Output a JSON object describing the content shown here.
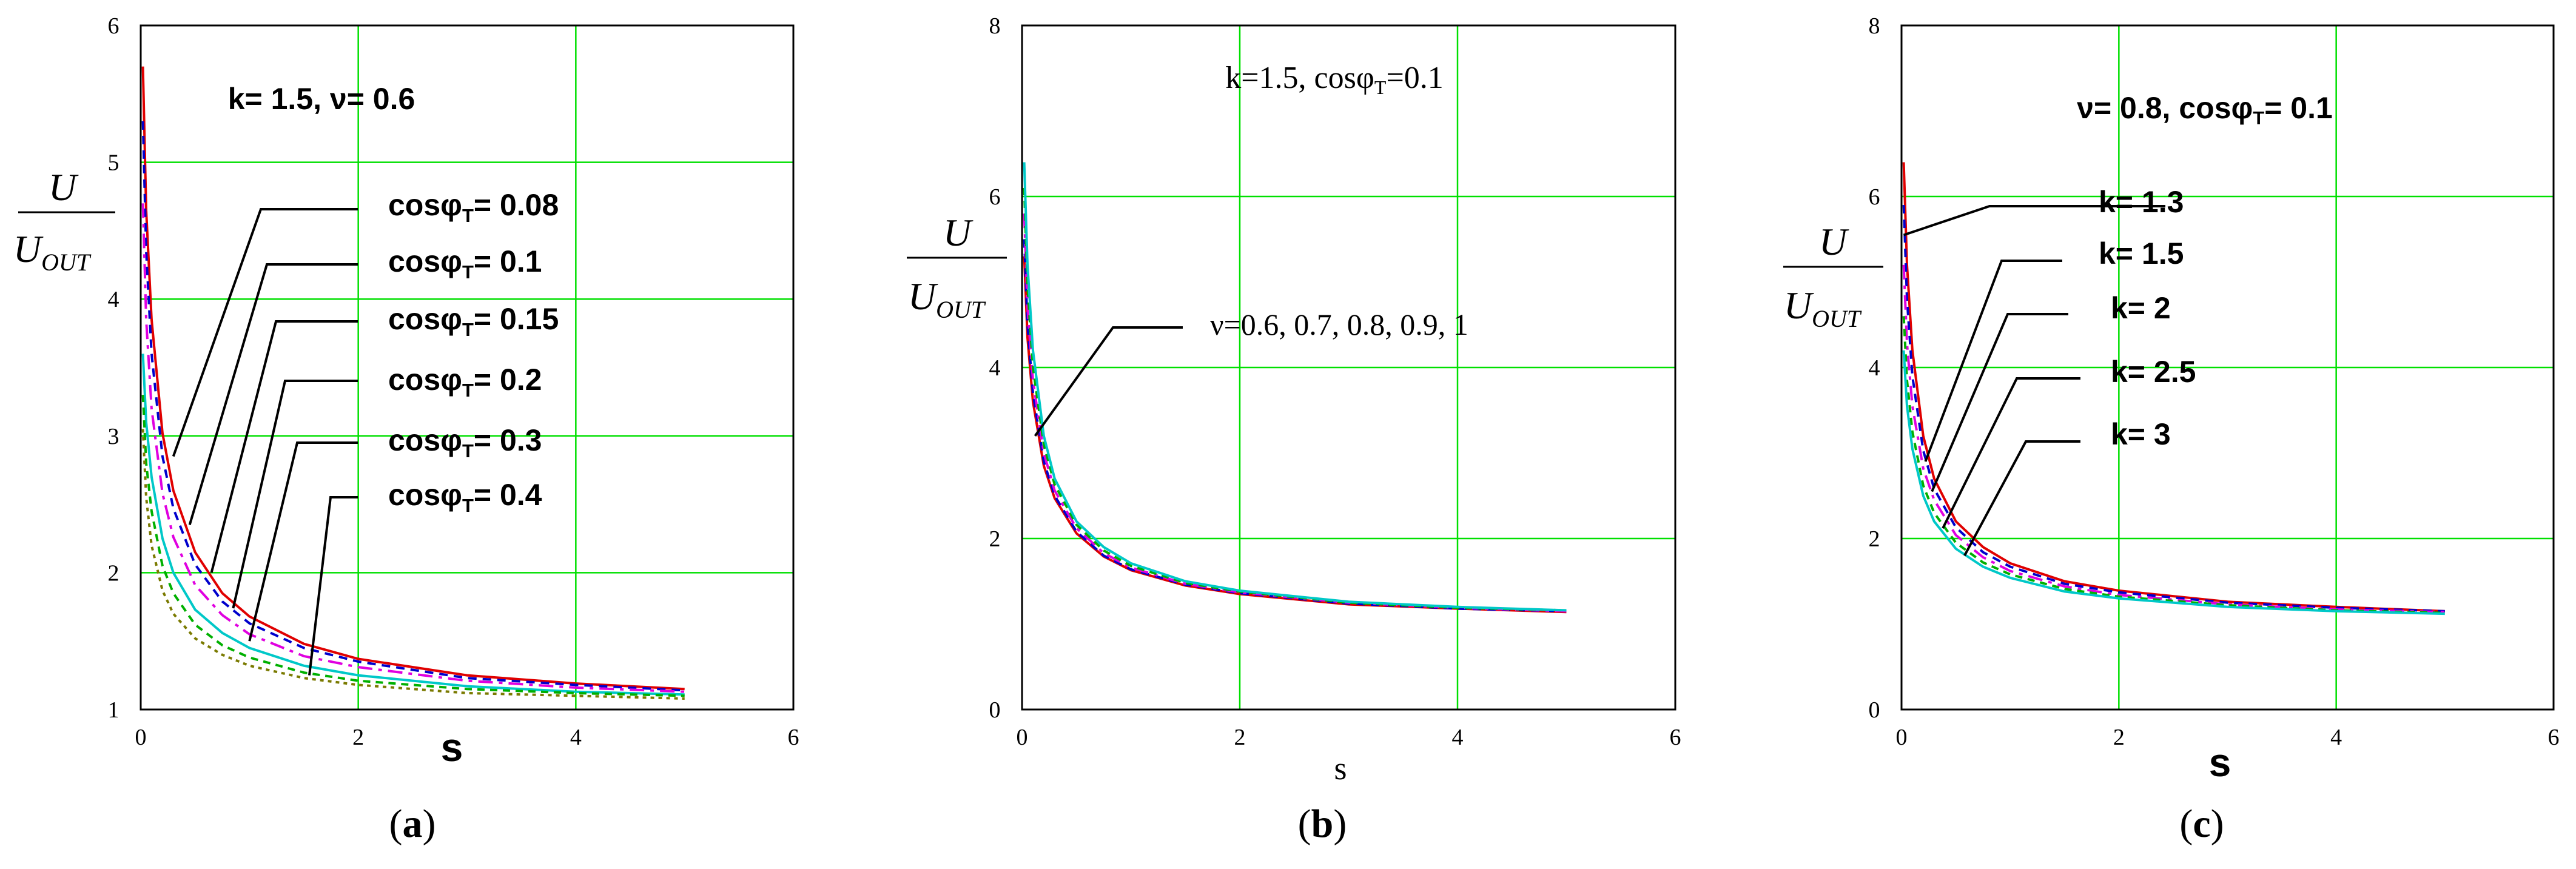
{
  "chart_data": [
    {
      "id": "a",
      "type": "line",
      "panel_label": "(a)",
      "xlabel": "s",
      "ylabel_num": "U",
      "ylabel_den": "U",
      "ylabel_den_sub": "OUT",
      "xlim": [
        0,
        6
      ],
      "ylim": [
        1,
        6
      ],
      "xticks": [
        0,
        2,
        4,
        6
      ],
      "yticks": [
        1,
        2,
        3,
        4,
        5,
        6
      ],
      "grid": true,
      "annotation": "k= 1.5, ν= 0.6",
      "label_style": "bold-sans",
      "series": [
        {
          "name": "cosφT= 0.08",
          "label_main": "cosφ",
          "label_sub": "T",
          "label_rest": "= 0.08",
          "color": "#e00000",
          "dash": "",
          "x": [
            0.02,
            0.05,
            0.1,
            0.2,
            0.3,
            0.5,
            0.75,
            1,
            1.5,
            2,
            3,
            4,
            5
          ],
          "y": [
            5.7,
            4.65,
            3.85,
            3.02,
            2.6,
            2.15,
            1.85,
            1.68,
            1.48,
            1.37,
            1.25,
            1.19,
            1.15
          ]
        },
        {
          "name": "cosφT= 0.1",
          "label_main": "cosφ",
          "label_sub": "T",
          "label_rest": "= 0.1",
          "color": "#0000cc",
          "dash": "14 10",
          "x": [
            0.02,
            0.05,
            0.1,
            0.2,
            0.3,
            0.5,
            0.75,
            1,
            1.5,
            2,
            3,
            4,
            5
          ],
          "y": [
            5.3,
            4.35,
            3.6,
            2.85,
            2.47,
            2.06,
            1.79,
            1.63,
            1.45,
            1.35,
            1.23,
            1.18,
            1.14
          ]
        },
        {
          "name": "cosφT= 0.15",
          "label_main": "cosφ",
          "label_sub": "T",
          "label_rest": "= 0.15",
          "color": "#e000e0",
          "dash": "24 10 6 10",
          "x": [
            0.02,
            0.05,
            0.1,
            0.2,
            0.3,
            0.5,
            0.75,
            1,
            1.5,
            2,
            3,
            4,
            5
          ],
          "y": [
            4.7,
            3.85,
            3.2,
            2.58,
            2.26,
            1.91,
            1.69,
            1.55,
            1.39,
            1.31,
            1.21,
            1.16,
            1.13
          ]
        },
        {
          "name": "cosφT= 0.2",
          "label_main": "cosφ",
          "label_sub": "T",
          "label_rest": "= 0.2",
          "color": "#00c8c8",
          "dash": "",
          "x": [
            0.02,
            0.05,
            0.1,
            0.2,
            0.3,
            0.5,
            0.75,
            1,
            1.5,
            2,
            3,
            4,
            5
          ],
          "y": [
            3.6,
            3.1,
            2.7,
            2.25,
            2.0,
            1.73,
            1.56,
            1.45,
            1.32,
            1.25,
            1.17,
            1.13,
            1.11
          ]
        },
        {
          "name": "cosφT= 0.3",
          "label_main": "cosφ",
          "label_sub": "T",
          "label_rest": "= 0.3",
          "color": "#00b000",
          "dash": "12 9",
          "x": [
            0.02,
            0.05,
            0.1,
            0.2,
            0.3,
            0.5,
            0.75,
            1,
            1.5,
            2,
            3,
            4,
            5
          ],
          "y": [
            3.3,
            2.8,
            2.45,
            2.05,
            1.85,
            1.62,
            1.47,
            1.38,
            1.27,
            1.21,
            1.15,
            1.12,
            1.1
          ]
        },
        {
          "name": "cosφT= 0.4",
          "label_main": "cosφ",
          "label_sub": "T",
          "label_rest": "= 0.4",
          "color": "#7a7a00",
          "dash": "6 7",
          "x": [
            0.02,
            0.05,
            0.1,
            0.2,
            0.3,
            0.5,
            0.75,
            1,
            1.5,
            2,
            3,
            4,
            5
          ],
          "y": [
            3.05,
            2.55,
            2.2,
            1.87,
            1.7,
            1.52,
            1.4,
            1.32,
            1.23,
            1.18,
            1.12,
            1.1,
            1.08
          ]
        }
      ]
    },
    {
      "id": "b",
      "type": "line",
      "panel_label": "(b)",
      "xlabel": "s",
      "ylabel_num": "U",
      "ylabel_den": "U",
      "ylabel_den_sub": "OUT",
      "xlim": [
        0,
        6
      ],
      "ylim": [
        0,
        8
      ],
      "xticks": [
        0,
        2,
        4,
        6
      ],
      "yticks": [
        0,
        2,
        4,
        6,
        8
      ],
      "grid": true,
      "annotation": "k=1.5, cosφT=0.1",
      "group_label": "ν=0.6, 0.7, 0.8, 0.9, 1",
      "label_style": "serif",
      "series": [
        {
          "name": "ν=0.6",
          "color": "#e00000",
          "dash": "",
          "x": [
            0.02,
            0.05,
            0.1,
            0.2,
            0.3,
            0.5,
            0.75,
            1,
            1.5,
            2,
            3,
            4,
            5
          ],
          "y": [
            5.3,
            4.35,
            3.6,
            2.85,
            2.47,
            2.06,
            1.79,
            1.63,
            1.45,
            1.35,
            1.23,
            1.18,
            1.14
          ]
        },
        {
          "name": "ν=0.7",
          "color": "#0000cc",
          "dash": "14 10",
          "x": [
            0.02,
            0.05,
            0.1,
            0.2,
            0.3,
            0.5,
            0.75,
            1,
            1.5,
            2,
            3,
            4,
            5
          ],
          "y": [
            5.5,
            4.5,
            3.7,
            2.9,
            2.5,
            2.08,
            1.8,
            1.64,
            1.46,
            1.36,
            1.24,
            1.18,
            1.15
          ]
        },
        {
          "name": "ν=0.8",
          "color": "#e000e0",
          "dash": "24 10 6 10",
          "x": [
            0.02,
            0.05,
            0.1,
            0.2,
            0.3,
            0.5,
            0.75,
            1,
            1.5,
            2,
            3,
            4,
            5
          ],
          "y": [
            5.8,
            4.7,
            3.85,
            3.0,
            2.56,
            2.12,
            1.83,
            1.66,
            1.47,
            1.37,
            1.25,
            1.19,
            1.15
          ]
        },
        {
          "name": "ν=0.9",
          "color": "#00b000",
          "dash": "12 9",
          "x": [
            0.02,
            0.05,
            0.1,
            0.2,
            0.3,
            0.5,
            0.75,
            1,
            1.5,
            2,
            3,
            4,
            5
          ],
          "y": [
            6.1,
            4.95,
            4.0,
            3.1,
            2.63,
            2.16,
            1.86,
            1.68,
            1.48,
            1.38,
            1.25,
            1.19,
            1.16
          ]
        },
        {
          "name": "ν=1",
          "color": "#00c8c8",
          "dash": "",
          "x": [
            0.02,
            0.05,
            0.1,
            0.2,
            0.3,
            0.5,
            0.75,
            1,
            1.5,
            2,
            3,
            4,
            5
          ],
          "y": [
            6.4,
            5.2,
            4.2,
            3.2,
            2.7,
            2.2,
            1.9,
            1.71,
            1.5,
            1.39,
            1.26,
            1.2,
            1.16
          ]
        }
      ]
    },
    {
      "id": "c",
      "type": "line",
      "panel_label": "(c)",
      "xlabel": "s",
      "ylabel_num": "U",
      "ylabel_den": "U",
      "ylabel_den_sub": "OUT",
      "xlim": [
        0,
        6
      ],
      "ylim": [
        0,
        8
      ],
      "xticks": [
        0,
        2,
        4,
        6
      ],
      "yticks": [
        0,
        2,
        4,
        6,
        8
      ],
      "grid": true,
      "annotation": "ν= 0.8, cosφT= 0.1",
      "label_style": "bold-sans",
      "series": [
        {
          "name": "k= 1.3",
          "color": "#e00000",
          "dash": "",
          "x": [
            0.02,
            0.05,
            0.1,
            0.2,
            0.3,
            0.5,
            0.75,
            1,
            1.5,
            2,
            3,
            4,
            5
          ],
          "y": [
            6.4,
            5.2,
            4.2,
            3.2,
            2.7,
            2.2,
            1.9,
            1.71,
            1.5,
            1.39,
            1.26,
            1.2,
            1.15
          ]
        },
        {
          "name": "k= 1.5",
          "color": "#0000cc",
          "dash": "14 10",
          "x": [
            0.02,
            0.05,
            0.1,
            0.2,
            0.3,
            0.5,
            0.75,
            1,
            1.5,
            2,
            3,
            4,
            5
          ],
          "y": [
            5.9,
            4.8,
            3.9,
            3.03,
            2.58,
            2.13,
            1.84,
            1.67,
            1.47,
            1.37,
            1.25,
            1.19,
            1.15
          ]
        },
        {
          "name": "k= 2",
          "color": "#e000e0",
          "dash": "24 10 6 10",
          "x": [
            0.02,
            0.05,
            0.1,
            0.2,
            0.3,
            0.5,
            0.75,
            1,
            1.5,
            2,
            3,
            4,
            5
          ],
          "y": [
            5.2,
            4.28,
            3.55,
            2.82,
            2.45,
            2.04,
            1.78,
            1.62,
            1.44,
            1.34,
            1.23,
            1.17,
            1.14
          ]
        },
        {
          "name": "k= 2.5",
          "color": "#00b000",
          "dash": "12 9",
          "x": [
            0.02,
            0.05,
            0.1,
            0.2,
            0.3,
            0.5,
            0.75,
            1,
            1.5,
            2,
            3,
            4,
            5
          ],
          "y": [
            4.6,
            3.85,
            3.25,
            2.62,
            2.3,
            1.95,
            1.72,
            1.58,
            1.41,
            1.32,
            1.22,
            1.16,
            1.13
          ]
        },
        {
          "name": "k= 3",
          "color": "#00c8c8",
          "dash": "",
          "x": [
            0.02,
            0.05,
            0.1,
            0.2,
            0.3,
            0.5,
            0.75,
            1,
            1.5,
            2,
            3,
            4,
            5
          ],
          "y": [
            4.2,
            3.55,
            3.05,
            2.5,
            2.2,
            1.88,
            1.67,
            1.54,
            1.38,
            1.3,
            1.2,
            1.15,
            1.12
          ]
        }
      ]
    }
  ]
}
